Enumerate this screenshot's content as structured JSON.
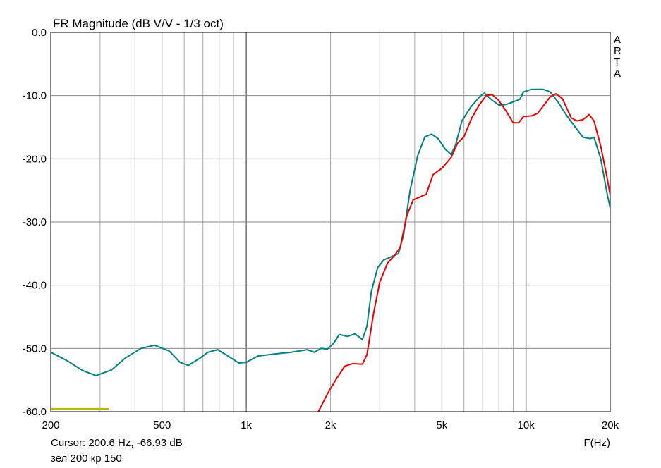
{
  "chart_data": {
    "type": "line",
    "title": "FR Magnitude (dB V/V - 1/3 oct)",
    "xlabel": "F(Hz)",
    "ylabel": "",
    "x_scale": "log",
    "xlim": [
      200,
      20000
    ],
    "ylim": [
      -60,
      0
    ],
    "grid": true,
    "x_ticks": [
      {
        "value": 200,
        "label": "200"
      },
      {
        "value": 500,
        "label": "500"
      },
      {
        "value": 1000,
        "label": "1k"
      },
      {
        "value": 2000,
        "label": "2k"
      },
      {
        "value": 5000,
        "label": "5k"
      },
      {
        "value": 10000,
        "label": "10k"
      },
      {
        "value": 20000,
        "label": "20k"
      }
    ],
    "x_minor_grid": [
      300,
      400,
      600,
      700,
      800,
      900,
      3000,
      4000,
      6000,
      7000,
      8000,
      9000
    ],
    "y_ticks": [
      {
        "value": 0,
        "label": "0.0"
      },
      {
        "value": -10,
        "label": "-10.0"
      },
      {
        "value": -20,
        "label": "-20.0"
      },
      {
        "value": -30,
        "label": "-30.0"
      },
      {
        "value": -40,
        "label": "-40.0"
      },
      {
        "value": -50,
        "label": "-50.0"
      },
      {
        "value": -60,
        "label": "-60.0"
      }
    ],
    "side_label": [
      "A",
      "R",
      "T",
      "A"
    ],
    "cursor_text": "Cursor: 200.6 Hz, -66.93 dB",
    "note_text": "зел 200 кр 150",
    "colors": {
      "green": "#008080",
      "red": "#ee0000",
      "grid": "#aaaaaa",
      "marker": "#b8b800"
    },
    "series": [
      {
        "color": "#008080",
        "points": [
          [
            200,
            -50.6
          ],
          [
            230,
            -52.0
          ],
          [
            260,
            -53.5
          ],
          [
            290,
            -54.3
          ],
          [
            330,
            -53.4
          ],
          [
            370,
            -51.5
          ],
          [
            420,
            -50.0
          ],
          [
            470,
            -49.5
          ],
          [
            530,
            -50.4
          ],
          [
            580,
            -52.2
          ],
          [
            620,
            -52.7
          ],
          [
            680,
            -51.6
          ],
          [
            730,
            -50.6
          ],
          [
            790,
            -50.2
          ],
          [
            860,
            -51.2
          ],
          [
            940,
            -52.3
          ],
          [
            1000,
            -52.2
          ],
          [
            1100,
            -51.2
          ],
          [
            1250,
            -50.9
          ],
          [
            1450,
            -50.6
          ],
          [
            1650,
            -50.2
          ],
          [
            1750,
            -50.6
          ],
          [
            1850,
            -50.0
          ],
          [
            1950,
            -50.1
          ],
          [
            2050,
            -49.2
          ],
          [
            2150,
            -47.8
          ],
          [
            2300,
            -48.1
          ],
          [
            2450,
            -47.7
          ],
          [
            2600,
            -48.6
          ],
          [
            2700,
            -46.5
          ],
          [
            2800,
            -41.0
          ],
          [
            2950,
            -37.2
          ],
          [
            3100,
            -36.0
          ],
          [
            3300,
            -35.5
          ],
          [
            3500,
            -35.0
          ],
          [
            3650,
            -32.0
          ],
          [
            3850,
            -25.0
          ],
          [
            4100,
            -19.5
          ],
          [
            4350,
            -16.5
          ],
          [
            4600,
            -16.1
          ],
          [
            4850,
            -16.8
          ],
          [
            5150,
            -18.5
          ],
          [
            5400,
            -19.3
          ],
          [
            5600,
            -17.8
          ],
          [
            5900,
            -14.0
          ],
          [
            6350,
            -11.8
          ],
          [
            6850,
            -10.1
          ],
          [
            7100,
            -9.6
          ],
          [
            7500,
            -10.6
          ],
          [
            8000,
            -11.5
          ],
          [
            8500,
            -11.4
          ],
          [
            9000,
            -11.0
          ],
          [
            9500,
            -10.6
          ],
          [
            9800,
            -9.4
          ],
          [
            10500,
            -9.0
          ],
          [
            11500,
            -9.0
          ],
          [
            12200,
            -9.4
          ],
          [
            13000,
            -11.0
          ],
          [
            14000,
            -13.2
          ],
          [
            15000,
            -15.0
          ],
          [
            16000,
            -16.6
          ],
          [
            17000,
            -16.8
          ],
          [
            17500,
            -16.6
          ],
          [
            18500,
            -20.0
          ],
          [
            19500,
            -25.5
          ],
          [
            20000,
            -27.8
          ]
        ]
      },
      {
        "color": "#ee0000",
        "points": [
          [
            1800,
            -60.2
          ],
          [
            1950,
            -57.2
          ],
          [
            2100,
            -54.8
          ],
          [
            2250,
            -52.8
          ],
          [
            2400,
            -52.4
          ],
          [
            2600,
            -52.5
          ],
          [
            2700,
            -51.0
          ],
          [
            2850,
            -44.5
          ],
          [
            3000,
            -39.5
          ],
          [
            3200,
            -36.5
          ],
          [
            3400,
            -35.2
          ],
          [
            3550,
            -34.0
          ],
          [
            3750,
            -29.0
          ],
          [
            3950,
            -26.5
          ],
          [
            4200,
            -26.0
          ],
          [
            4400,
            -25.6
          ],
          [
            4650,
            -22.5
          ],
          [
            5000,
            -21.5
          ],
          [
            5400,
            -19.8
          ],
          [
            5700,
            -17.5
          ],
          [
            6000,
            -16.5
          ],
          [
            6400,
            -13.5
          ],
          [
            6800,
            -11.5
          ],
          [
            7200,
            -10.0
          ],
          [
            7550,
            -9.8
          ],
          [
            8000,
            -10.8
          ],
          [
            8500,
            -12.5
          ],
          [
            9000,
            -14.3
          ],
          [
            9400,
            -14.3
          ],
          [
            9800,
            -13.3
          ],
          [
            10500,
            -13.2
          ],
          [
            11000,
            -12.8
          ],
          [
            11500,
            -11.7
          ],
          [
            12200,
            -10.2
          ],
          [
            12800,
            -9.7
          ],
          [
            13500,
            -10.5
          ],
          [
            14500,
            -13.5
          ],
          [
            15200,
            -14.0
          ],
          [
            16000,
            -13.8
          ],
          [
            16800,
            -13.0
          ],
          [
            17500,
            -14.0
          ],
          [
            18500,
            -18.0
          ],
          [
            19500,
            -23.0
          ],
          [
            20000,
            -25.8
          ]
        ]
      },
      {
        "color": "#b8b800",
        "points": [
          [
            200,
            -59.6
          ],
          [
            320,
            -59.6
          ]
        ]
      }
    ]
  }
}
